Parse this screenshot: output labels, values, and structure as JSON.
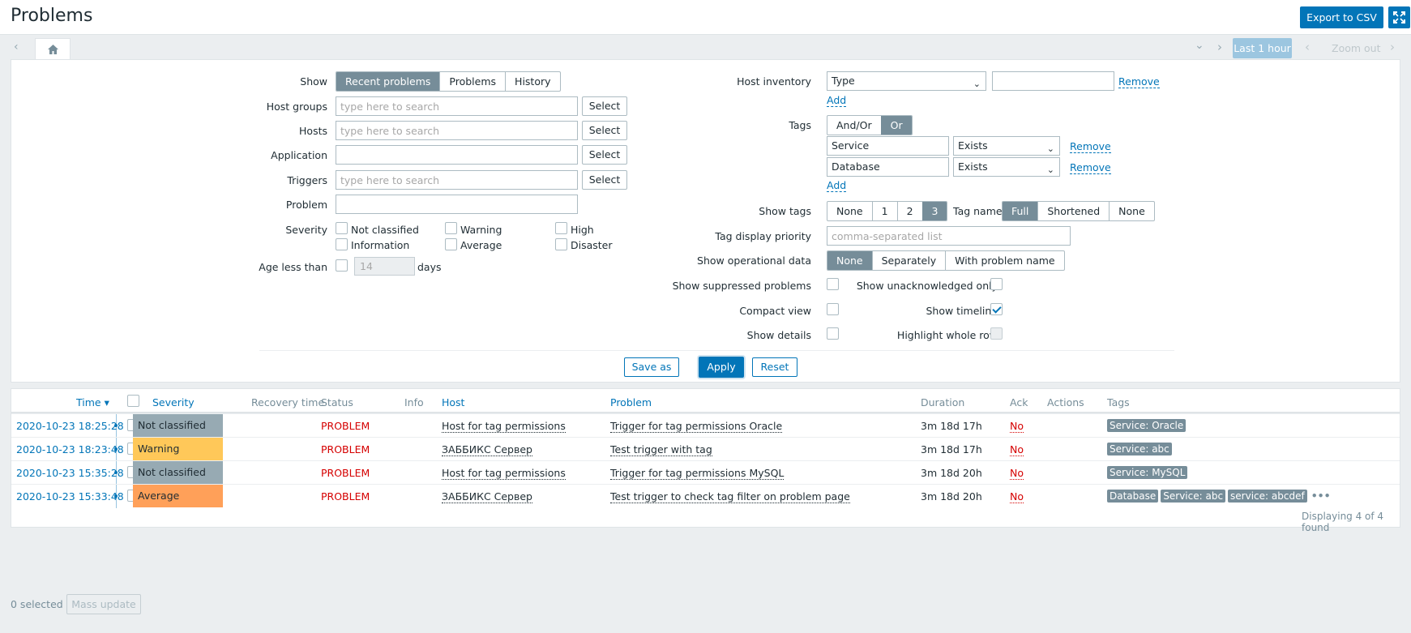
{
  "header": {
    "title": "Problems",
    "export_label": "Export to CSV"
  },
  "timebar": {
    "period": "Last 1 hour",
    "zoom_out": "Zoom out"
  },
  "filter": {
    "show_label": "Show",
    "show_options": [
      "Recent problems",
      "Problems",
      "History"
    ],
    "host_groups_label": "Host groups",
    "hosts_label": "Hosts",
    "application_label": "Application",
    "triggers_label": "Triggers",
    "problem_label": "Problem",
    "search_placeholder": "type here to search",
    "select_label": "Select",
    "severity_label": "Severity",
    "severities": [
      "Not classified",
      "Information",
      "Warning",
      "Average",
      "High",
      "Disaster"
    ],
    "age_label": "Age less than",
    "age_value": "14",
    "age_unit": "days",
    "host_inventory_label": "Host inventory",
    "inventory_field": "Type",
    "remove_label": "Remove",
    "add_label": "Add",
    "tags_label": "Tags",
    "tags_mode": [
      "And/Or",
      "Or"
    ],
    "tag_rows": [
      {
        "name": "Service",
        "op": "Exists"
      },
      {
        "name": "Database",
        "op": "Exists"
      }
    ],
    "show_tags_label": "Show tags",
    "show_tags_options": [
      "None",
      "1",
      "2",
      "3"
    ],
    "tag_name_label": "Tag name",
    "tag_name_options": [
      "Full",
      "Shortened",
      "None"
    ],
    "tag_priority_label": "Tag display priority",
    "tag_priority_placeholder": "comma-separated list",
    "opdata_label": "Show operational data",
    "opdata_options": [
      "None",
      "Separately",
      "With problem name"
    ],
    "suppressed_label": "Show suppressed problems",
    "unack_label": "Show unacknowledged only",
    "compact_label": "Compact view",
    "timeline_label": "Show timeline",
    "details_label": "Show details",
    "highlight_label": "Highlight whole row",
    "save_as": "Save as",
    "apply": "Apply",
    "reset": "Reset"
  },
  "table": {
    "headers": {
      "time": "Time ▾",
      "severity": "Severity",
      "recovery": "Recovery time",
      "status": "Status",
      "info": "Info",
      "host": "Host",
      "problem": "Problem",
      "duration": "Duration",
      "ack": "Ack",
      "actions": "Actions",
      "tags": "Tags"
    },
    "rows": [
      {
        "time": "2020-10-23 18:25:28",
        "severity": "Not classified",
        "sev_color": "#97aab3",
        "status": "PROBLEM",
        "host": "Host for tag permissions",
        "problem": "Trigger for tag permissions Oracle",
        "duration": "3m 18d 17h",
        "ack": "No",
        "tags": [
          "Service: Oracle"
        ]
      },
      {
        "time": "2020-10-23 18:23:48",
        "severity": "Warning",
        "sev_color": "#ffc859",
        "status": "PROBLEM",
        "host": "ЗАББИКС Сервер",
        "problem": "Test trigger with tag",
        "duration": "3m 18d 17h",
        "ack": "No",
        "tags": [
          "Service: abc"
        ]
      },
      {
        "time": "2020-10-23 15:35:28",
        "severity": "Not classified",
        "sev_color": "#97aab3",
        "status": "PROBLEM",
        "host": "Host for tag permissions",
        "problem": "Trigger for tag permissions MySQL",
        "duration": "3m 18d 20h",
        "ack": "No",
        "tags": [
          "Service: MySQL"
        ]
      },
      {
        "time": "2020-10-23 15:33:48",
        "severity": "Average",
        "sev_color": "#ffa059",
        "status": "PROBLEM",
        "host": "ЗАББИКС Сервер",
        "problem": "Test trigger to check tag filter on problem page",
        "duration": "3m 18d 20h",
        "ack": "No",
        "tags": [
          "Database",
          "Service: abc",
          "service: abcdef"
        ]
      }
    ],
    "footer": "Displaying 4 of 4 found"
  },
  "bottom": {
    "selected": "0 selected",
    "mass_update": "Mass update"
  }
}
